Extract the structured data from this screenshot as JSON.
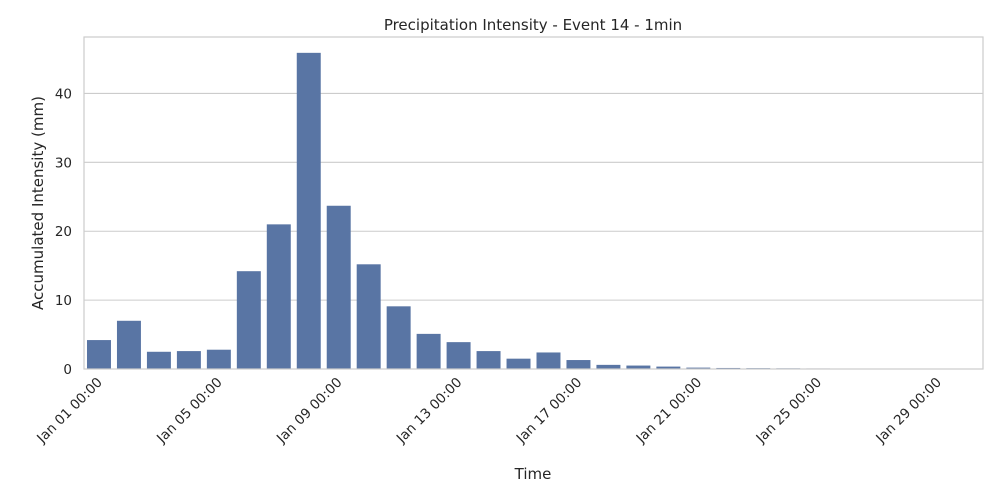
{
  "chart_data": {
    "type": "bar",
    "title": "Precipitation Intensity - Event 14 - 1min",
    "xlabel": "Time",
    "ylabel": "Accumulated Intensity (mm)",
    "categories": [
      "Jan 01",
      "Jan 02",
      "Jan 03",
      "Jan 04",
      "Jan 05",
      "Jan 06",
      "Jan 07",
      "Jan 08",
      "Jan 09",
      "Jan 10",
      "Jan 11",
      "Jan 12",
      "Jan 13",
      "Jan 14",
      "Jan 15",
      "Jan 16",
      "Jan 17",
      "Jan 18",
      "Jan 19",
      "Jan 20",
      "Jan 21",
      "Jan 22",
      "Jan 23",
      "Jan 24",
      "Jan 25",
      "Jan 26",
      "Jan 27",
      "Jan 28",
      "Jan 29",
      "Jan 30"
    ],
    "values": [
      4.2,
      7.0,
      2.5,
      2.6,
      2.8,
      14.2,
      21.0,
      45.9,
      23.7,
      15.2,
      9.1,
      5.1,
      3.9,
      2.6,
      1.5,
      2.4,
      1.3,
      0.6,
      0.5,
      0.35,
      0.2,
      0.15,
      0.12,
      0.1,
      0.08,
      0.06,
      0.05,
      0.04,
      0.03,
      0.02
    ],
    "xtick_labels": [
      {
        "index": 0,
        "label": "Jan 01 00:00"
      },
      {
        "index": 4,
        "label": "Jan 05 00:00"
      },
      {
        "index": 8,
        "label": "Jan 09 00:00"
      },
      {
        "index": 12,
        "label": "Jan 13 00:00"
      },
      {
        "index": 16,
        "label": "Jan 17 00:00"
      },
      {
        "index": 20,
        "label": "Jan 21 00:00"
      },
      {
        "index": 24,
        "label": "Jan 25 00:00"
      },
      {
        "index": 28,
        "label": "Jan 29 00:00"
      }
    ],
    "yticks": [
      0,
      10,
      20,
      30,
      40
    ],
    "ylim": [
      0,
      48.2
    ],
    "grid": true,
    "bar_color": "#5975a4",
    "grid_color": "#cccccc",
    "axis_edge_color": "#cccccc"
  }
}
